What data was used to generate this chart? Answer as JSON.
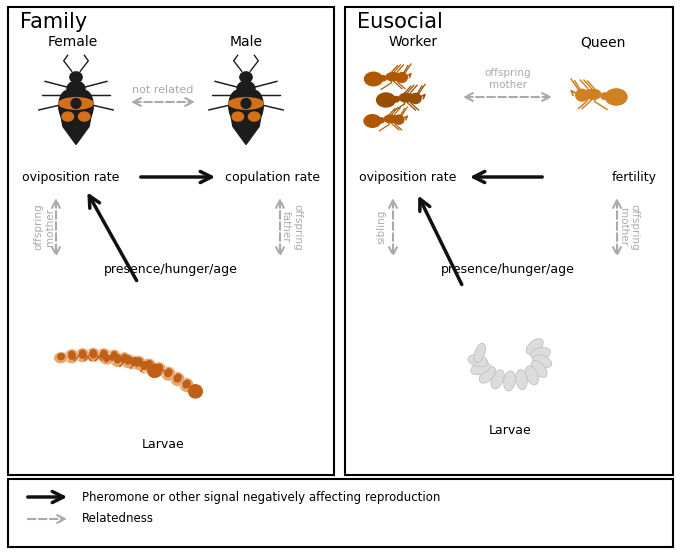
{
  "title_left": "Family",
  "title_right": "Eusocial",
  "family_labels": {
    "female": "Female",
    "male": "Male",
    "oviposition_rate_left": "oviposition rate",
    "copulation_rate": "copulation rate",
    "not_related": "not related",
    "offspring_mother_left": "offspring\nmother",
    "offspring_father": "offspring\nfather",
    "presence_hunger_age_left": "presence/hunger/age",
    "larvae_left": "Larvae"
  },
  "eusocial_labels": {
    "worker": "Worker",
    "queen": "Queen",
    "oviposition_rate_right": "oviposition rate",
    "fertility": "fertility",
    "offspring_mother_top": "offspring\nmother",
    "sibling": "sibling",
    "offspring_mother_bottom": "offspring\nmother",
    "presence_hunger_age_right": "presence/hunger/age",
    "larvae_right": "Larvae"
  },
  "legend": {
    "solid_arrow_label": "Pheromone or other signal negatively affecting reproduction",
    "dashed_arrow_label": "Relatedness"
  },
  "colors": {
    "background": "#ffffff",
    "solid_arrow": "#111111",
    "dashed_arrow": "#aaaaaa",
    "orange_beetle": "#d4701a",
    "beetle_black": "#1c1c1c",
    "ant_dark": "#b05800",
    "ant_light": "#d08020",
    "larvae_orange_dark": "#c06018",
    "larvae_orange_light": "#e8a870",
    "larvae_white": "#dcdcdc",
    "larvae_white_edge": "#bbbbbb"
  }
}
